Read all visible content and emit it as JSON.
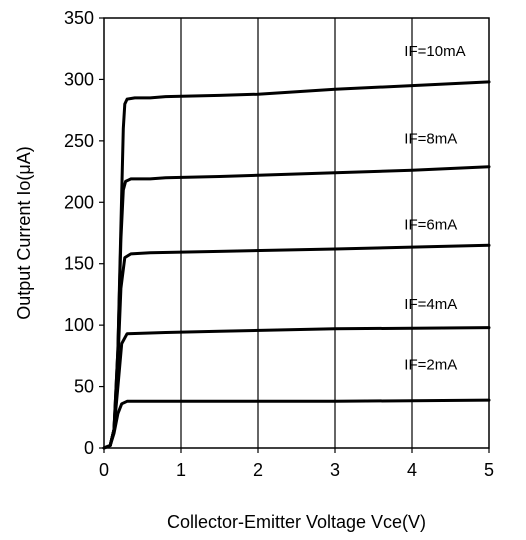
{
  "chart_data": {
    "type": "line",
    "title": "",
    "xlabel": "Collector-Emitter Voltage Vce(V)",
    "ylabel": "Output Current Io(μA)",
    "xlim": [
      0,
      5
    ],
    "ylim": [
      0,
      350
    ],
    "xticks": [
      0,
      1,
      2,
      3,
      4,
      5
    ],
    "yticks": [
      0,
      50,
      100,
      150,
      200,
      250,
      300,
      350
    ],
    "grid": "vertical",
    "legend": "inline labels",
    "series": [
      {
        "name": "IF=10mA",
        "x": [
          0,
          0.08,
          0.13,
          0.18,
          0.22,
          0.25,
          0.27,
          0.3,
          0.4,
          0.6,
          0.8,
          1.5,
          2,
          3,
          4,
          5
        ],
        "y": [
          0,
          2,
          15,
          80,
          180,
          260,
          280,
          284,
          285,
          285,
          286,
          287,
          288,
          292,
          295,
          298
        ]
      },
      {
        "name": "IF=8mA",
        "x": [
          0,
          0.08,
          0.13,
          0.18,
          0.22,
          0.25,
          0.28,
          0.35,
          0.6,
          0.8,
          1.5,
          2,
          3,
          4,
          5
        ],
        "y": [
          0,
          2,
          15,
          80,
          170,
          210,
          217,
          219,
          219,
          220,
          221,
          222,
          224,
          226,
          229
        ]
      },
      {
        "name": "IF=6mA",
        "x": [
          0,
          0.08,
          0.13,
          0.18,
          0.22,
          0.27,
          0.35,
          0.6,
          1.5,
          3,
          5
        ],
        "y": [
          0,
          2,
          15,
          70,
          130,
          155,
          158,
          159,
          160,
          162,
          165
        ]
      },
      {
        "name": "IF=4mA",
        "x": [
          0,
          0.08,
          0.13,
          0.18,
          0.23,
          0.3,
          0.8,
          1.5,
          3,
          5
        ],
        "y": [
          0,
          2,
          15,
          50,
          85,
          93,
          94,
          95,
          97,
          98
        ]
      },
      {
        "name": "IF=2mA",
        "x": [
          0,
          0.08,
          0.13,
          0.18,
          0.23,
          0.3,
          1.5,
          3,
          5
        ],
        "y": [
          0,
          2,
          12,
          28,
          36,
          38,
          38,
          38,
          39
        ]
      }
    ],
    "annotations": [
      {
        "text": "IF=10mA",
        "x": 3.9,
        "y": 319
      },
      {
        "text": "IF=8mA",
        "x": 3.9,
        "y": 248
      },
      {
        "text": "IF=6mA",
        "x": 3.9,
        "y": 178
      },
      {
        "text": "IF=4mA",
        "x": 3.9,
        "y": 113
      },
      {
        "text": "IF=2mA",
        "x": 3.9,
        "y": 64
      }
    ]
  }
}
